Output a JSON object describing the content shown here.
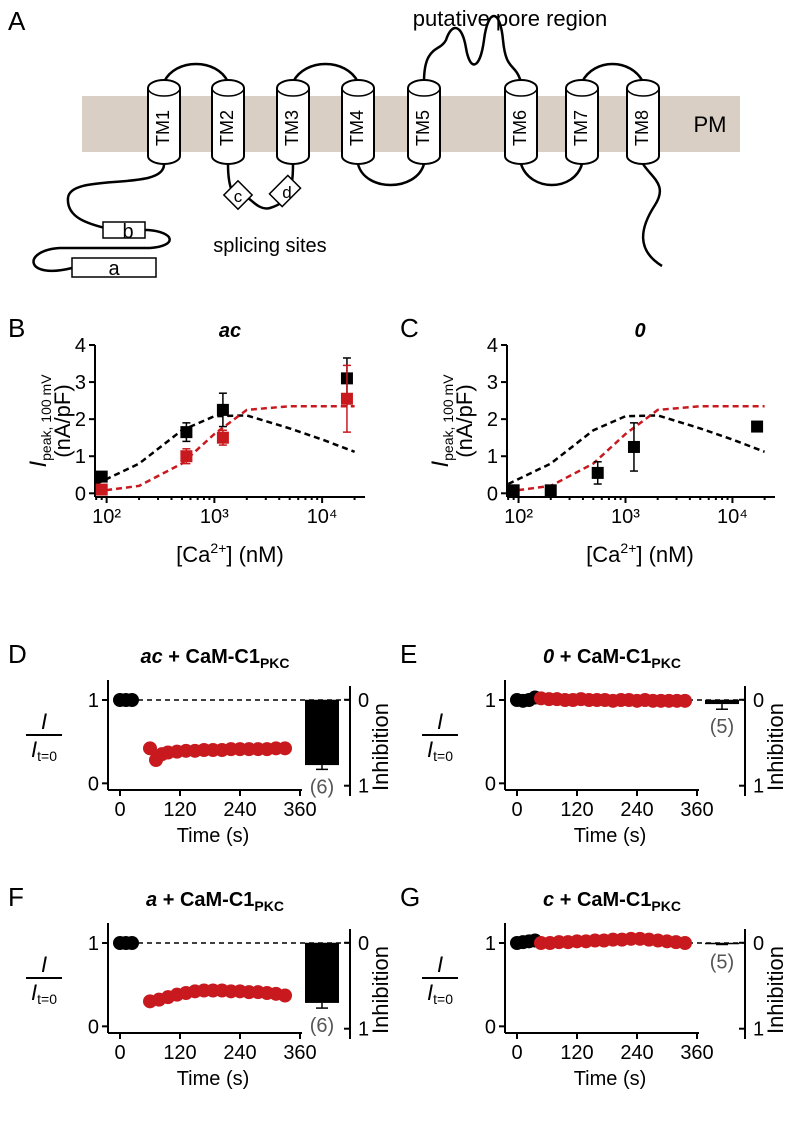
{
  "diagram": {
    "panel": "A",
    "pore_label": "putative pore region",
    "membrane_label": "PM",
    "segments": [
      "TM1",
      "TM2",
      "TM3",
      "TM4",
      "TM5",
      "TM6",
      "TM7",
      "TM8"
    ],
    "sites": [
      "a",
      "b",
      "c",
      "d"
    ],
    "sites_label": "splicing sites"
  },
  "chart_data": [
    {
      "type": "scatter",
      "panel": "B",
      "title": "ac",
      "xscale": "log",
      "xlim": [
        78,
        25000
      ],
      "ylim": [
        -0.1,
        4
      ],
      "xticks": [
        {
          "value": 100,
          "label": "10²"
        },
        {
          "value": 1000,
          "label": "10³"
        },
        {
          "value": 10000,
          "label": "10⁴"
        }
      ],
      "yticks": [
        0,
        1,
        2,
        3,
        4
      ],
      "xlabel": {
        "text": "[Ca",
        "superscript": "2+",
        "unit": "] (nM)"
      },
      "ylabel": {
        "symbol": "I",
        "subscript": "peak, 100 mV",
        "unit": "(nA/pF)"
      },
      "series": [
        {
          "color": "#000000",
          "style": "dashed",
          "x": [
            80,
            200,
            500,
            1000,
            2000,
            5000,
            10000,
            20000
          ],
          "values": [
            0.25,
            0.8,
            1.7,
            2.08,
            2.1,
            1.75,
            1.45,
            1.12
          ]
        },
        {
          "color": "#c8191e",
          "style": "dashed",
          "x": [
            80,
            200,
            500,
            1000,
            2000,
            5000,
            10000,
            20000
          ],
          "values": [
            0.05,
            0.2,
            0.8,
            1.6,
            2.25,
            2.35,
            2.35,
            2.35
          ]
        },
        {
          "color": "#000000",
          "x": [
            90,
            550,
            1200,
            17000
          ],
          "values": [
            0.45,
            1.65,
            2.25,
            3.1
          ],
          "errors": [
            0.1,
            0.25,
            0.45,
            0.55
          ]
        },
        {
          "color": "#c8191e",
          "x": [
            90,
            550,
            1200,
            17000
          ],
          "values": [
            0.1,
            1.0,
            1.5,
            2.55
          ],
          "errors": [
            0.05,
            0.2,
            0.2,
            0.9
          ]
        }
      ]
    },
    {
      "type": "scatter",
      "panel": "C",
      "title": "0",
      "xscale": "log",
      "xlim": [
        78,
        25000
      ],
      "ylim": [
        -0.1,
        4
      ],
      "xticks": [
        {
          "value": 100,
          "label": "10²"
        },
        {
          "value": 1000,
          "label": "10³"
        },
        {
          "value": 10000,
          "label": "10⁴"
        }
      ],
      "yticks": [
        0,
        1,
        2,
        3,
        4
      ],
      "xlabel": {
        "text": "[Ca",
        "superscript": "2+",
        "unit": "] (nM)"
      },
      "ylabel": {
        "symbol": "I",
        "subscript": "peak, 100 mV",
        "unit": "(nA/pF)"
      },
      "series": [
        {
          "color": "#000000",
          "style": "dashed",
          "x": [
            80,
            200,
            500,
            1000,
            2000,
            5000,
            10000,
            20000
          ],
          "values": [
            0.25,
            0.8,
            1.7,
            2.08,
            2.1,
            1.75,
            1.45,
            1.12
          ]
        },
        {
          "color": "#c8191e",
          "style": "dashed",
          "x": [
            80,
            200,
            500,
            1000,
            2000,
            5000,
            10000,
            20000
          ],
          "values": [
            0.05,
            0.2,
            0.8,
            1.6,
            2.25,
            2.35,
            2.35,
            2.35
          ]
        },
        {
          "color": "#000000",
          "x": [
            90,
            200,
            550,
            1200,
            17000
          ],
          "values": [
            0.08,
            0.08,
            0.55,
            1.25,
            1.8
          ],
          "errors": [
            0.05,
            0.05,
            0.3,
            0.65,
            0.1
          ]
        }
      ]
    },
    {
      "type": "scatter",
      "panel": "D",
      "title": {
        "construct": "ac",
        "text": " + CaM-C1",
        "subscript": "PKC"
      },
      "xlim": [
        -24,
        364
      ],
      "ylim": [
        -0.08,
        1.24
      ],
      "y2lim": [
        1.05,
        -0.23
      ],
      "xticks": [
        0,
        120,
        240,
        360
      ],
      "yticks": [
        0,
        1
      ],
      "y2ticks": [
        0,
        1
      ],
      "xlabel": "Time (s)",
      "ylabel": {
        "numerator": "I",
        "denominator": "I",
        "subscript": "t=0"
      },
      "y2label": "Inhibition",
      "series": [
        {
          "color": "#000000",
          "x": [
            0,
            12,
            24
          ],
          "values": [
            1,
            1,
            1
          ]
        },
        {
          "color": "#c8191e",
          "x": [
            60,
            72,
            84,
            96,
            114,
            132,
            150,
            168,
            186,
            204,
            222,
            240,
            258,
            276,
            294,
            312,
            330
          ],
          "values": [
            0.42,
            0.28,
            0.35,
            0.37,
            0.38,
            0.39,
            0.39,
            0.4,
            0.4,
            0.4,
            0.41,
            0.41,
            0.41,
            0.41,
            0.41,
            0.42,
            0.42
          ]
        },
        {
          "type": "bar",
          "axis": "y2",
          "color": "#000000",
          "values": [
            0.76
          ],
          "errors": [
            0.05
          ],
          "n_label": "(6)"
        }
      ]
    },
    {
      "type": "scatter",
      "panel": "E",
      "title": {
        "construct": "0",
        "text": " + CaM-C1",
        "subscript": "PKC"
      },
      "xlim": [
        -24,
        364
      ],
      "ylim": [
        -0.08,
        1.24
      ],
      "y2lim": [
        1.05,
        -0.23
      ],
      "xticks": [
        0,
        120,
        240,
        360
      ],
      "yticks": [
        0,
        1
      ],
      "y2ticks": [
        0,
        1
      ],
      "xlabel": "Time (s)",
      "ylabel": {
        "numerator": "I",
        "denominator": "I",
        "subscript": "t=0"
      },
      "y2label": "Inhibition",
      "series": [
        {
          "color": "#000000",
          "x": [
            0,
            12,
            24,
            36
          ],
          "values": [
            1,
            0.99,
            1,
            1.03
          ]
        },
        {
          "color": "#c8191e",
          "x": [
            48,
            64,
            80,
            96,
            112,
            128,
            144,
            160,
            176,
            192,
            208,
            224,
            240,
            256,
            272,
            288,
            304,
            320,
            336
          ],
          "values": [
            1.02,
            1.01,
            1.01,
            1.0,
            1.0,
            1.01,
            1.0,
            1.0,
            1.0,
            0.99,
            1.0,
            1.0,
            0.99,
            1.0,
            0.99,
            0.99,
            0.99,
            0.99,
            0.99
          ]
        },
        {
          "type": "bar",
          "axis": "y2",
          "color": "#000000",
          "values": [
            0.05
          ],
          "errors": [
            0.06
          ],
          "n_label": "(5)"
        }
      ]
    },
    {
      "type": "scatter",
      "panel": "F",
      "title": {
        "construct": "a",
        "text": " + CaM-C1",
        "subscript": "PKC"
      },
      "xlim": [
        -24,
        364
      ],
      "ylim": [
        -0.08,
        1.24
      ],
      "y2lim": [
        1.05,
        -0.23
      ],
      "xticks": [
        0,
        120,
        240,
        360
      ],
      "yticks": [
        0,
        1
      ],
      "y2ticks": [
        0,
        1
      ],
      "xlabel": "Time (s)",
      "ylabel": {
        "numerator": "I",
        "denominator": "I",
        "subscript": "t=0"
      },
      "y2label": "Inhibition",
      "series": [
        {
          "color": "#000000",
          "x": [
            0,
            12,
            24
          ],
          "values": [
            1,
            1,
            1
          ]
        },
        {
          "color": "#c8191e",
          "x": [
            60,
            78,
            96,
            114,
            132,
            150,
            168,
            186,
            204,
            222,
            240,
            258,
            276,
            294,
            312,
            330
          ],
          "values": [
            0.3,
            0.32,
            0.35,
            0.38,
            0.4,
            0.42,
            0.43,
            0.43,
            0.43,
            0.42,
            0.42,
            0.41,
            0.41,
            0.4,
            0.39,
            0.37
          ]
        },
        {
          "type": "bar",
          "axis": "y2",
          "color": "#000000",
          "values": [
            0.7
          ],
          "errors": [
            0.06
          ],
          "n_label": "(6)"
        }
      ]
    },
    {
      "type": "scatter",
      "panel": "G",
      "title": {
        "construct": "c",
        "text": " + CaM-C1",
        "subscript": "PKC"
      },
      "xlim": [
        -24,
        364
      ],
      "ylim": [
        -0.08,
        1.24
      ],
      "y2lim": [
        1.05,
        -0.23
      ],
      "xticks": [
        0,
        120,
        240,
        360
      ],
      "yticks": [
        0,
        1
      ],
      "y2ticks": [
        0,
        1
      ],
      "xlabel": "Time (s)",
      "ylabel": {
        "numerator": "I",
        "denominator": "I",
        "subscript": "t=0"
      },
      "y2label": "Inhibition",
      "series": [
        {
          "color": "#000000",
          "x": [
            0,
            12,
            24,
            36
          ],
          "values": [
            1.0,
            1.01,
            1.02,
            1.03
          ]
        },
        {
          "color": "#c8191e",
          "x": [
            48,
            66,
            84,
            102,
            120,
            138,
            156,
            174,
            192,
            210,
            228,
            246,
            264,
            282,
            300,
            318,
            336
          ],
          "values": [
            1.0,
            1.0,
            1.01,
            1.01,
            1.02,
            1.02,
            1.03,
            1.03,
            1.04,
            1.04,
            1.05,
            1.05,
            1.04,
            1.03,
            1.02,
            1.01,
            1.0
          ]
        },
        {
          "type": "bar",
          "axis": "y2",
          "color": "#000000",
          "values": [
            0.01
          ],
          "errors": [
            0.01
          ],
          "n_label": "(5)"
        }
      ]
    }
  ]
}
